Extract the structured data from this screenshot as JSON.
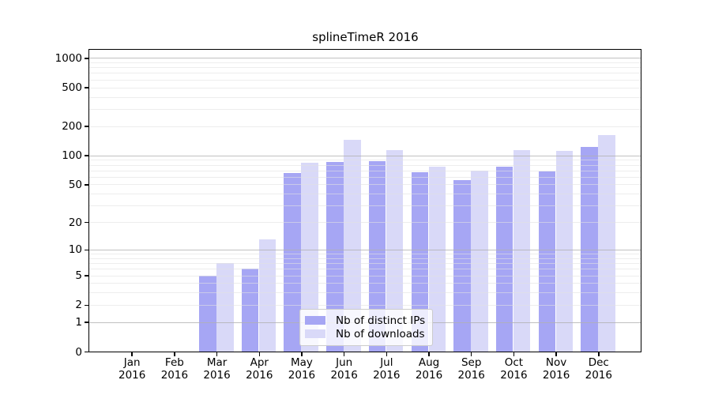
{
  "chart_data": {
    "type": "bar",
    "title": "splineTimeR 2016",
    "year_label": "2016",
    "categories": [
      "Jan",
      "Feb",
      "Mar",
      "Apr",
      "May",
      "Jun",
      "Jul",
      "Aug",
      "Sep",
      "Oct",
      "Nov",
      "Dec"
    ],
    "series": [
      {
        "name": "Nb of distinct IPs",
        "color": "#a6a6f4",
        "values": [
          0,
          0,
          5,
          6,
          66,
          85,
          88,
          67,
          55,
          77,
          68,
          122
        ]
      },
      {
        "name": "Nb of downloads",
        "color": "#d9d9f8",
        "values": [
          0,
          0,
          7,
          13,
          84,
          145,
          113,
          76,
          70,
          113,
          111,
          161
        ]
      }
    ],
    "y_axis": {
      "scale": "log1p",
      "ticks": [
        0,
        1,
        2,
        5,
        10,
        20,
        50,
        100,
        200,
        500,
        1000
      ],
      "top_value": 1200
    },
    "x_axis": {
      "tick_label_lines": 2
    },
    "grid": {
      "major_at": [
        1,
        10,
        100,
        1000
      ],
      "minor": "2-9 per decade"
    },
    "legend": {
      "position": "inside-bottom-center",
      "entries": [
        "Nb of distinct IPs",
        "Nb of downloads"
      ]
    }
  }
}
